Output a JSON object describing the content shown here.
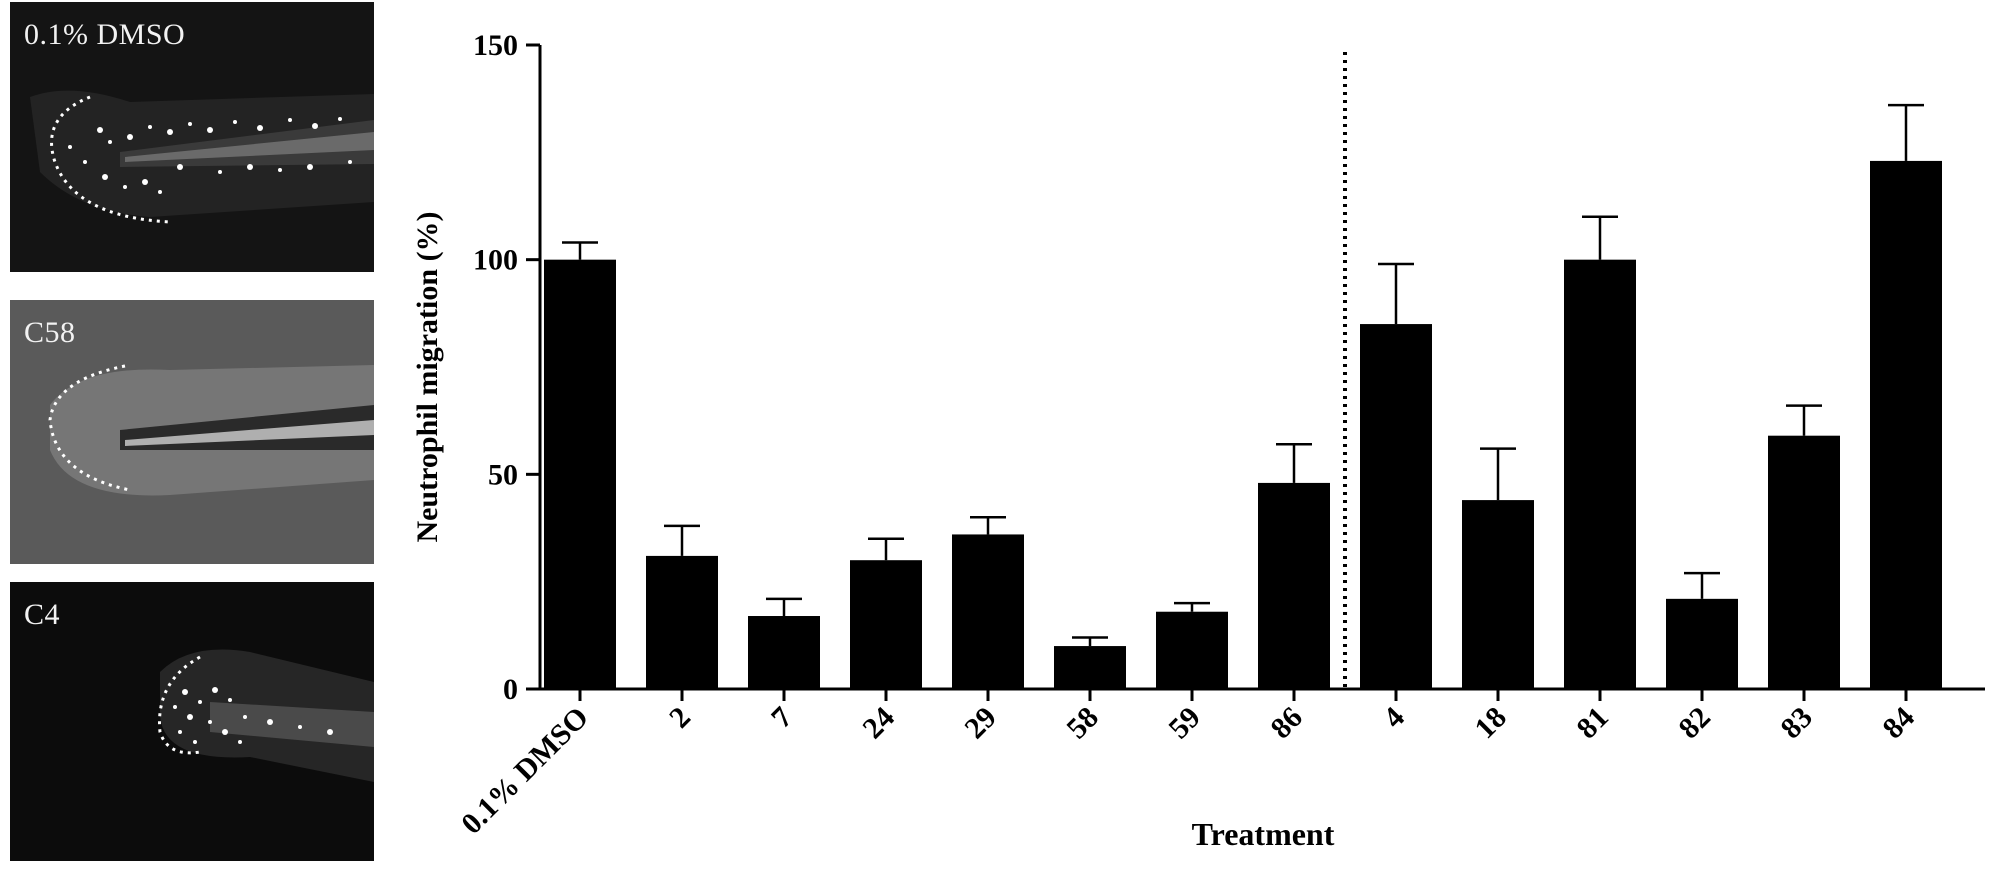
{
  "panels": [
    {
      "label": "0.1% DMSO",
      "image": "zebrafish-tail-fluorescence"
    },
    {
      "label": "C58",
      "image": "zebrafish-tail-brightfield"
    },
    {
      "label": "C4",
      "image": "zebrafish-tail-fluorescence"
    }
  ],
  "chart_data": {
    "type": "bar",
    "xlabel": "Treatment",
    "ylabel": "Neutrophil migration (%)",
    "ylim": [
      0,
      150
    ],
    "yticks": [
      0,
      50,
      100,
      150
    ],
    "grid": false,
    "legend": "none",
    "bar_color": "#000000",
    "divider_after_category": "86",
    "categories": [
      "0.1% DMSO",
      "2",
      "7",
      "24",
      "29",
      "58",
      "59",
      "86",
      "4",
      "18",
      "81",
      "82",
      "83",
      "84"
    ],
    "series": [
      {
        "values": [
          100,
          31,
          17,
          30,
          36,
          10,
          18,
          48,
          85,
          44,
          100,
          21,
          59,
          123
        ],
        "error_upper": [
          4,
          7,
          4,
          5,
          4,
          2,
          2,
          9,
          14,
          12,
          10,
          6,
          7,
          13
        ]
      }
    ]
  }
}
